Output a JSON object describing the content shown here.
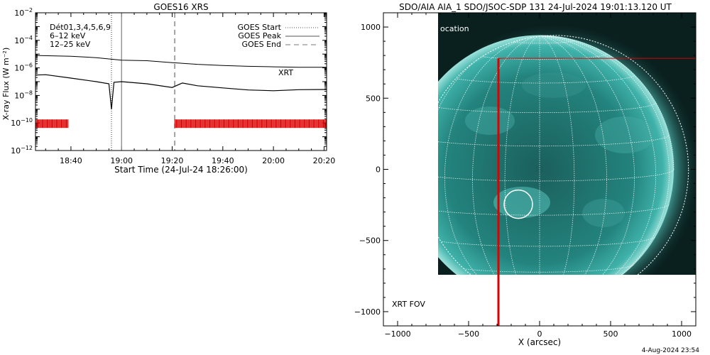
{
  "chart_data": [
    {
      "type": "line",
      "title": "GOES16 XRS",
      "xlabel": "Start Time (24-Jul-24 18:26:00)",
      "ylabel": "X-ray Flux (W m⁻²)",
      "y_scale": "log",
      "ylim": [
        1e-12,
        0.01
      ],
      "xlim": [
        "18:26",
        "20:21"
      ],
      "x_tick_labels": [
        "18:40",
        "19:00",
        "19:20",
        "19:40",
        "20:00",
        "20:20"
      ],
      "y_tick_exponents": [
        -12,
        -10,
        -8,
        -6,
        -4,
        -2
      ],
      "y_tick_base": "10",
      "detector_label": "Dét01,3,4,5,6,9",
      "energy_labels": [
        {
          "text": "6–12 keV",
          "color": "#cc00cc"
        },
        {
          "text": "12–25 keV",
          "color": "#00cc00"
        }
      ],
      "legend": [
        {
          "name": "GOES Start",
          "style": "dotted"
        },
        {
          "name": "GOES Peak",
          "style": "solid"
        },
        {
          "name": "GOES End",
          "style": "dashed"
        }
      ],
      "legend_position": "top-right",
      "xrt_label": "XRT",
      "xrt_color": "#dd0000",
      "vertical_markers": [
        {
          "time": "18:56",
          "style": "dotted"
        },
        {
          "time": "19:00",
          "style": "solid"
        },
        {
          "time": "19:21",
          "style": "dashed"
        }
      ],
      "series": [
        {
          "x": [
            "18:26",
            "18:40",
            "18:50",
            "19:00",
            "19:10",
            "19:20",
            "19:30",
            "19:40",
            "19:50",
            "20:00",
            "20:10",
            "20:21"
          ],
          "y": [
            8e-06,
            7e-06,
            5.5e-06,
            3.6e-06,
            3.3e-06,
            2.4e-06,
            1.8e-06,
            1.5e-06,
            1.3e-06,
            1.2e-06,
            1.1e-06,
            1.1e-06
          ]
        },
        {
          "x": [
            "18:26",
            "18:30",
            "18:40",
            "18:50",
            "18:55",
            "18:56",
            "18:57",
            "19:00",
            "19:10",
            "19:20",
            "19:24",
            "19:30",
            "19:40",
            "19:50",
            "20:00",
            "20:10",
            "20:21"
          ],
          "y": [
            3e-07,
            3.2e-07,
            1.8e-07,
            1e-07,
            7e-08,
            1e-09,
            9e-08,
            1e-07,
            7e-08,
            3.8e-08,
            8e-08,
            5e-08,
            3.5e-08,
            2.5e-08,
            2.2e-08,
            2.6e-08,
            2.7e-08
          ]
        }
      ],
      "xrt_observation_ranges": [
        [
          "18:26",
          "18:39"
        ],
        [
          "19:21",
          "20:21"
        ]
      ],
      "xrt_marker_level": 1e-10
    },
    {
      "type": "image",
      "title": "SDO/AIA AIA_1 SDO/JSOC-SDP 131 24-Jul-2024 19:01:13.120 UT",
      "xlabel": "X (arcsec)",
      "ylabel": "",
      "xlim": [
        -1100,
        1100
      ],
      "ylim": [
        -1100,
        1100
      ],
      "x_tick_labels": [
        "−1000",
        "−500",
        "0",
        "500",
        "1000"
      ],
      "y_tick_labels": [
        "1000",
        "500",
        "0",
        "−500",
        "−1000"
      ],
      "image_x_range": [
        -730,
        1100
      ],
      "image_y_range": [
        -745,
        1100
      ],
      "solar_radius_arcsec": 945,
      "partial_label": "ocation",
      "flare_circle": {
        "x": -150,
        "y": -245,
        "r": 100
      },
      "xrt_fov": {
        "x0": -290,
        "x1": 1100,
        "y0": -1100,
        "y1": 780,
        "label": "XRT FOV",
        "color": "#dd0000"
      },
      "disk_color": "#1a7a76",
      "grid_color": "#ffffff"
    }
  ],
  "footer_timestamp": "4-Aug-2024 23:54"
}
